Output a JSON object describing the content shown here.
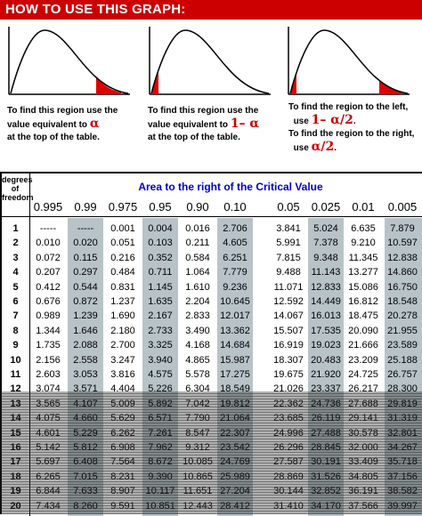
{
  "banner": {
    "title": "HOW TO USE THIS GRAPH:"
  },
  "panels": [
    {
      "line1": "To find this region use the",
      "line2": "value equivalent to",
      "symbol": "α",
      "line3": "at the top of the table."
    },
    {
      "line1": "To find this region use the",
      "line2": "value equivalent to",
      "symbol": "1– α",
      "line3": "at the top of the table."
    },
    {
      "line1": "To find the region to the left,",
      "line2": "use",
      "symbol": "1– α/2",
      "symbol_suffix": ".",
      "line3": "To find the region to the right,",
      "line4": "use",
      "symbol2": "α/2",
      "symbol2_suffix": "."
    }
  ],
  "table": {
    "dof_label_1": "degrees",
    "dof_label_2": "of",
    "dof_label_3": "freedom",
    "area_title": "Area to the right of the Critical Value",
    "columns": [
      "0.995",
      "0.99",
      "0.975",
      "0.95",
      "0.90",
      "0.10",
      "0.05",
      "0.025",
      "0.01",
      "0.005"
    ],
    "rows": [
      {
        "df": "1",
        "v": [
          "-----",
          "-----",
          "0.001",
          "0.004",
          "0.016",
          "2.706",
          "3.841",
          "5.024",
          "6.635",
          "7.879"
        ]
      },
      {
        "df": "2",
        "v": [
          "0.010",
          "0.020",
          "0.051",
          "0.103",
          "0.211",
          "4.605",
          "5.991",
          "7.378",
          "9.210",
          "10.597"
        ]
      },
      {
        "df": "3",
        "v": [
          "0.072",
          "0.115",
          "0.216",
          "0.352",
          "0.584",
          "6.251",
          "7.815",
          "9.348",
          "11.345",
          "12.838"
        ]
      },
      {
        "df": "4",
        "v": [
          "0.207",
          "0.297",
          "0.484",
          "0.711",
          "1.064",
          "7.779",
          "9.488",
          "11.143",
          "13.277",
          "14.860"
        ]
      },
      {
        "df": "5",
        "v": [
          "0.412",
          "0.544",
          "0.831",
          "1.145",
          "1.610",
          "9.236",
          "11.071",
          "12.833",
          "15.086",
          "16.750"
        ]
      },
      {
        "df": "6",
        "v": [
          "0.676",
          "0.872",
          "1.237",
          "1.635",
          "2.204",
          "10.645",
          "12.592",
          "14.449",
          "16.812",
          "18.548"
        ]
      },
      {
        "df": "7",
        "v": [
          "0.989",
          "1.239",
          "1.690",
          "2.167",
          "2.833",
          "12.017",
          "14.067",
          "16.013",
          "18.475",
          "20.278"
        ]
      },
      {
        "df": "8",
        "v": [
          "1.344",
          "1.646",
          "2.180",
          "2.733",
          "3.490",
          "13.362",
          "15.507",
          "17.535",
          "20.090",
          "21.955"
        ]
      },
      {
        "df": "9",
        "v": [
          "1.735",
          "2.088",
          "2.700",
          "3.325",
          "4.168",
          "14.684",
          "16.919",
          "19.023",
          "21.666",
          "23.589"
        ]
      },
      {
        "df": "10",
        "v": [
          "2.156",
          "2.558",
          "3.247",
          "3.940",
          "4.865",
          "15.987",
          "18.307",
          "20.483",
          "23.209",
          "25.188"
        ]
      },
      {
        "df": "11",
        "v": [
          "2.603",
          "3.053",
          "3.816",
          "4.575",
          "5.578",
          "17.275",
          "19.675",
          "21.920",
          "24.725",
          "26.757"
        ]
      },
      {
        "df": "12",
        "v": [
          "3.074",
          "3.571",
          "4.404",
          "5.226",
          "6.304",
          "18.549",
          "21.026",
          "23.337",
          "26.217",
          "28.300"
        ]
      },
      {
        "df": "13",
        "v": [
          "3.565",
          "4.107",
          "5.009",
          "5.892",
          "7.042",
          "19.812",
          "22.362",
          "24.736",
          "27.688",
          "29.819"
        ]
      },
      {
        "df": "14",
        "v": [
          "4.075",
          "4.660",
          "5.629",
          "6.571",
          "7.790",
          "21.064",
          "23.685",
          "26.119",
          "29.141",
          "31.319"
        ]
      },
      {
        "df": "15",
        "v": [
          "4.601",
          "5.229",
          "6.262",
          "7.261",
          "8.547",
          "22.307",
          "24.996",
          "27.488",
          "30.578",
          "32.801"
        ]
      },
      {
        "df": "16",
        "v": [
          "5.142",
          "5.812",
          "6.908",
          "7.962",
          "9.312",
          "23.542",
          "26.296",
          "28.845",
          "32.000",
          "34.267"
        ]
      },
      {
        "df": "17",
        "v": [
          "5.697",
          "6.408",
          "7.564",
          "8.672",
          "10.085",
          "24.769",
          "27.587",
          "30.191",
          "33.409",
          "35.718"
        ]
      },
      {
        "df": "18",
        "v": [
          "6.265",
          "7.015",
          "8.231",
          "9.390",
          "10.865",
          "25.989",
          "28.869",
          "31.526",
          "34.805",
          "37.156"
        ]
      },
      {
        "df": "19",
        "v": [
          "6.844",
          "7.633",
          "8.907",
          "10.117",
          "11.651",
          "27.204",
          "30.144",
          "32.852",
          "36.191",
          "38.582"
        ]
      },
      {
        "df": "20",
        "v": [
          "7.434",
          "8.260",
          "9.591",
          "10.851",
          "12.443",
          "28.412",
          "31.410",
          "34.170",
          "37.566",
          "39.997"
        ]
      }
    ]
  },
  "colors": {
    "banner": "#cc0000",
    "symbol": "#cc0000",
    "area_title": "#0000cc",
    "column_shade": "#b7c3c7",
    "region_fill": "#e00000"
  },
  "icons": [
    "right-tail-curve-icon",
    "left-tail-curve-icon",
    "two-tail-curve-icon"
  ]
}
